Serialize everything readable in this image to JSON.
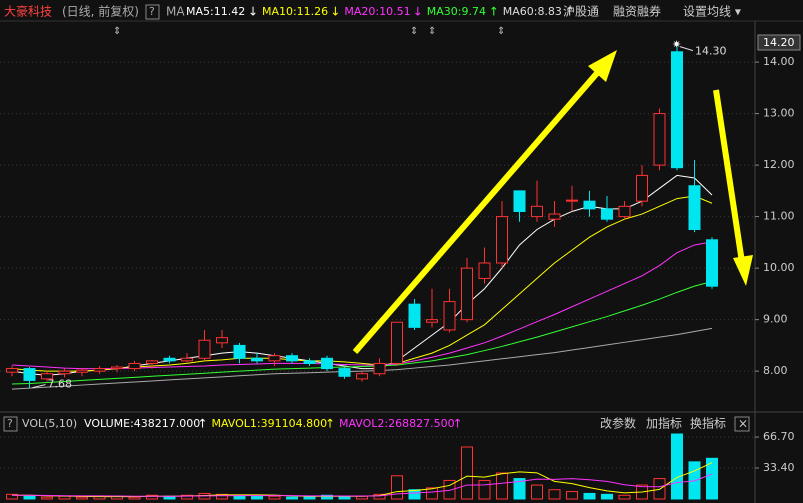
{
  "header": {
    "stock": "大豪科技",
    "mode": "(日线, 前复权)",
    "help": "?",
    "ma_title": "MA",
    "ma_items": [
      {
        "text": "MA5:11.42",
        "arrow": "↓",
        "color": "#ffffff"
      },
      {
        "text": "MA10:11.26",
        "arrow": "↓",
        "color": "#ffff00"
      },
      {
        "text": "MA20:10.51",
        "arrow": "↓",
        "color": "#ff33ff"
      },
      {
        "text": "MA30:9.74",
        "arrow": "↑",
        "color": "#33ff33"
      },
      {
        "text": "MA60:8.83",
        "arrow": "↑",
        "color": "#dddddd"
      }
    ],
    "links": [
      "沪股通",
      "融资融券",
      "设置均线 ▾"
    ],
    "price_box": "14.20"
  },
  "volume_header": {
    "help": "?",
    "title": "VOL(5,10)",
    "items": [
      {
        "text": "VOLUME:438217.000",
        "arrow": "↑",
        "color": "#ffffff"
      },
      {
        "text": "MAVOL1:391104.800",
        "arrow": "↑",
        "color": "#ffff00"
      },
      {
        "text": "MAVOL2:268827.500",
        "arrow": "↑",
        "color": "#ff33ff"
      }
    ],
    "buttons": [
      "改参数",
      "加指标",
      "换指标"
    ],
    "close": "×"
  },
  "chart_data": [
    {
      "type": "candlestick",
      "up_color": "#ff3232",
      "down_color": "#00e6f0",
      "grid": true,
      "ylim": [
        7.44,
        14.39
      ],
      "yticks": [
        {
          "value": 8,
          "label": "8.00"
        },
        {
          "value": 9,
          "label": "9.00"
        },
        {
          "value": 10,
          "label": "10.00"
        },
        {
          "value": 11,
          "label": "11.00"
        },
        {
          "value": 12,
          "label": "12.00"
        },
        {
          "value": 13,
          "label": "13.00"
        },
        {
          "value": 14,
          "label": "14.00"
        }
      ],
      "open": [
        7.98,
        8.05,
        7.85,
        7.95,
        7.98,
        8.0,
        8.05,
        8.05,
        8.15,
        8.25,
        8.2,
        8.25,
        8.55,
        8.5,
        8.25,
        8.2,
        8.3,
        8.2,
        8.25,
        8.05,
        7.85,
        7.95,
        8.15,
        9.3,
        8.95,
        8.8,
        9.0,
        9.8,
        10.1,
        11.5,
        11.0,
        10.95,
        11.3,
        11.3,
        11.15,
        11.0,
        11.3,
        12.0,
        14.2,
        11.6,
        10.55
      ],
      "high": [
        8.1,
        8.08,
        8.0,
        8.05,
        8.05,
        8.1,
        8.12,
        8.2,
        8.22,
        8.3,
        8.35,
        8.8,
        8.8,
        8.55,
        8.35,
        8.35,
        8.35,
        8.25,
        8.3,
        8.1,
        8.0,
        8.25,
        8.95,
        9.4,
        9.6,
        9.6,
        10.2,
        10.4,
        11.3,
        11.5,
        11.7,
        11.3,
        11.6,
        11.5,
        11.4,
        11.3,
        12.0,
        13.1,
        14.3,
        12.1,
        10.6
      ],
      "low": [
        7.9,
        7.68,
        7.8,
        7.88,
        7.9,
        7.95,
        7.98,
        8.0,
        8.05,
        8.15,
        8.15,
        8.2,
        8.45,
        8.15,
        8.15,
        8.1,
        8.15,
        8.1,
        8.0,
        7.85,
        7.8,
        7.9,
        8.1,
        8.8,
        8.85,
        8.75,
        8.95,
        9.7,
        10.0,
        10.9,
        10.9,
        10.8,
        11.1,
        11.0,
        10.9,
        10.95,
        11.2,
        11.9,
        11.9,
        10.7,
        9.6
      ],
      "close": [
        8.05,
        7.82,
        7.95,
        8.0,
        8.02,
        8.05,
        8.08,
        8.15,
        8.2,
        8.2,
        8.25,
        8.6,
        8.65,
        8.25,
        8.2,
        8.3,
        8.2,
        8.15,
        8.05,
        7.9,
        7.95,
        8.15,
        8.95,
        8.85,
        9.0,
        9.35,
        10.0,
        10.1,
        11.0,
        11.1,
        11.2,
        11.05,
        11.32,
        11.15,
        10.95,
        11.2,
        11.8,
        13.0,
        11.95,
        10.75,
        9.65
      ],
      "series": [
        {
          "name": "MA5",
          "color": "#ffffff",
          "values": [
            8.0,
            7.95,
            7.92,
            7.95,
            8.0,
            8.02,
            8.05,
            8.1,
            8.15,
            8.2,
            8.25,
            8.3,
            8.35,
            8.38,
            8.35,
            8.3,
            8.25,
            8.2,
            8.15,
            8.1,
            8.05,
            8.05,
            8.2,
            8.45,
            8.7,
            8.95,
            9.3,
            9.6,
            10.0,
            10.45,
            10.75,
            10.95,
            11.1,
            11.2,
            11.15,
            11.15,
            11.3,
            11.55,
            11.8,
            11.75,
            11.42
          ]
        },
        {
          "name": "MA10",
          "color": "#ffff00",
          "values": [
            8.05,
            8.02,
            8.0,
            8.0,
            8.0,
            8.02,
            8.05,
            8.08,
            8.1,
            8.12,
            8.15,
            8.2,
            8.22,
            8.25,
            8.25,
            8.25,
            8.22,
            8.2,
            8.2,
            8.18,
            8.15,
            8.12,
            8.15,
            8.25,
            8.35,
            8.5,
            8.7,
            8.9,
            9.2,
            9.5,
            9.8,
            10.1,
            10.35,
            10.6,
            10.8,
            10.95,
            11.05,
            11.2,
            11.35,
            11.4,
            11.26
          ]
        },
        {
          "name": "MA20",
          "color": "#ff33ff",
          "values": [
            8.12,
            8.1,
            8.08,
            8.06,
            8.05,
            8.05,
            8.05,
            8.06,
            8.07,
            8.08,
            8.09,
            8.1,
            8.12,
            8.13,
            8.14,
            8.15,
            8.15,
            8.15,
            8.14,
            8.13,
            8.12,
            8.12,
            8.14,
            8.2,
            8.27,
            8.35,
            8.45,
            8.55,
            8.68,
            8.82,
            8.96,
            9.1,
            9.25,
            9.4,
            9.55,
            9.7,
            9.85,
            10.05,
            10.3,
            10.45,
            10.51
          ]
        },
        {
          "name": "MA30",
          "color": "#33ff33",
          "values": [
            7.75,
            7.76,
            7.78,
            7.8,
            7.82,
            7.84,
            7.86,
            7.88,
            7.9,
            7.92,
            7.94,
            7.96,
            7.98,
            8.0,
            8.02,
            8.04,
            8.05,
            8.06,
            8.07,
            8.08,
            8.09,
            8.1,
            8.12,
            8.16,
            8.2,
            8.26,
            8.32,
            8.4,
            8.48,
            8.57,
            8.66,
            8.76,
            8.86,
            8.96,
            9.06,
            9.17,
            9.28,
            9.4,
            9.53,
            9.65,
            9.74
          ]
        },
        {
          "name": "MA60",
          "color": "#aaaaaa",
          "values": [
            7.65,
            7.67,
            7.69,
            7.71,
            7.73,
            7.75,
            7.77,
            7.79,
            7.81,
            7.83,
            7.85,
            7.87,
            7.89,
            7.91,
            7.93,
            7.95,
            7.96,
            7.97,
            7.98,
            7.99,
            8.0,
            8.01,
            8.03,
            8.06,
            8.09,
            8.12,
            8.16,
            8.2,
            8.24,
            8.28,
            8.32,
            8.36,
            8.41,
            8.46,
            8.51,
            8.56,
            8.61,
            8.66,
            8.71,
            8.77,
            8.83
          ]
        }
      ],
      "high_label": {
        "value": 14.3,
        "label": "14.30"
      },
      "low_label": {
        "value": 7.68,
        "label": "7.68"
      }
    },
    {
      "type": "volume",
      "ylim": [
        0,
        70
      ],
      "yticks": [
        {
          "value": 33.4,
          "label": "33.40"
        },
        {
          "value": 66.7,
          "label": "66.70"
        }
      ],
      "values": [
        5,
        3,
        2,
        3,
        2,
        3,
        3,
        2,
        4,
        3,
        4,
        6,
        5,
        4,
        3,
        3,
        2,
        3,
        4,
        3,
        3,
        5,
        25,
        10,
        12,
        20,
        56,
        20,
        28,
        22,
        15,
        10,
        8,
        6,
        5,
        4,
        15,
        22,
        70,
        40,
        43.82
      ],
      "series": [
        {
          "name": "MAVOL1",
          "color": "#ffff00",
          "values": [
            4,
            4,
            3.5,
            3.2,
            2.8,
            2.6,
            2.6,
            2.6,
            3,
            3,
            3.2,
            3.8,
            4.4,
            4.4,
            4.4,
            4.2,
            3.4,
            3,
            3,
            3,
            3,
            3.6,
            8,
            9.2,
            11,
            14.6,
            24.6,
            23.6,
            27.2,
            29.2,
            28.2,
            19,
            16.6,
            12.2,
            8.8,
            6.6,
            7.6,
            10.4,
            23.2,
            30.2,
            39.11
          ]
        },
        {
          "name": "MAVOL2",
          "color": "#ff33ff",
          "values": [
            4,
            4,
            3.8,
            3.5,
            3.3,
            3.3,
            3.2,
            3,
            3,
            3,
            3.1,
            3.3,
            3.5,
            3.6,
            3.6,
            3.7,
            3.6,
            3.4,
            3.4,
            3.2,
            3.2,
            3.3,
            5.5,
            6.5,
            7.5,
            9.3,
            15,
            15.2,
            17,
            18.9,
            21.4,
            21.1,
            21.9,
            20.7,
            19,
            15.4,
            13.3,
            13.2,
            17.7,
            19.5,
            26.88
          ]
        }
      ]
    }
  ]
}
